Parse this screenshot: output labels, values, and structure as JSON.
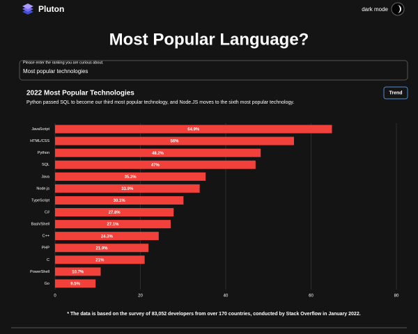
{
  "header": {
    "brand": "Pluton",
    "mode_label": "dark mode"
  },
  "page": {
    "title": "Most Popular Language?"
  },
  "search": {
    "label": "Please enter the ranking you are curious about.",
    "value": "Most popular technologies"
  },
  "card": {
    "button": "Trend"
  },
  "chart_data": {
    "type": "bar",
    "orientation": "horizontal",
    "title": "2022 Most Popular Technologies",
    "subtitle": "Python passed SQL to become our third most popular technology, and Node.JS moves to the sixth most popular technology.",
    "categories": [
      "JavaScript",
      "HTML/CSS",
      "Python",
      "SQL",
      "Java",
      "Node.js",
      "TypeScript",
      "C#",
      "Bash/Shell",
      "C++",
      "PHP",
      "C",
      "PowerShell",
      "Go"
    ],
    "values": [
      64.9,
      56,
      48.2,
      47,
      35.3,
      33.9,
      30.1,
      27.8,
      27.1,
      24.3,
      21.9,
      21,
      10.7,
      9.5
    ],
    "value_labels": [
      "64.9%",
      "56%",
      "48.2%",
      "47%",
      "35.3%",
      "33.9%",
      "30.1%",
      "27.8%",
      "27.1%",
      "24.3%",
      "21.9%",
      "21%",
      "10.7%",
      "9.5%"
    ],
    "color": "#f2403a",
    "xlim": [
      0,
      80
    ],
    "xticks": [
      0,
      20,
      40,
      60,
      80
    ],
    "grid": true
  },
  "footnote": "* The data is based on the survey of 83,052 developers from over 170 countries, conducted by Stack Overflow in January 2022."
}
